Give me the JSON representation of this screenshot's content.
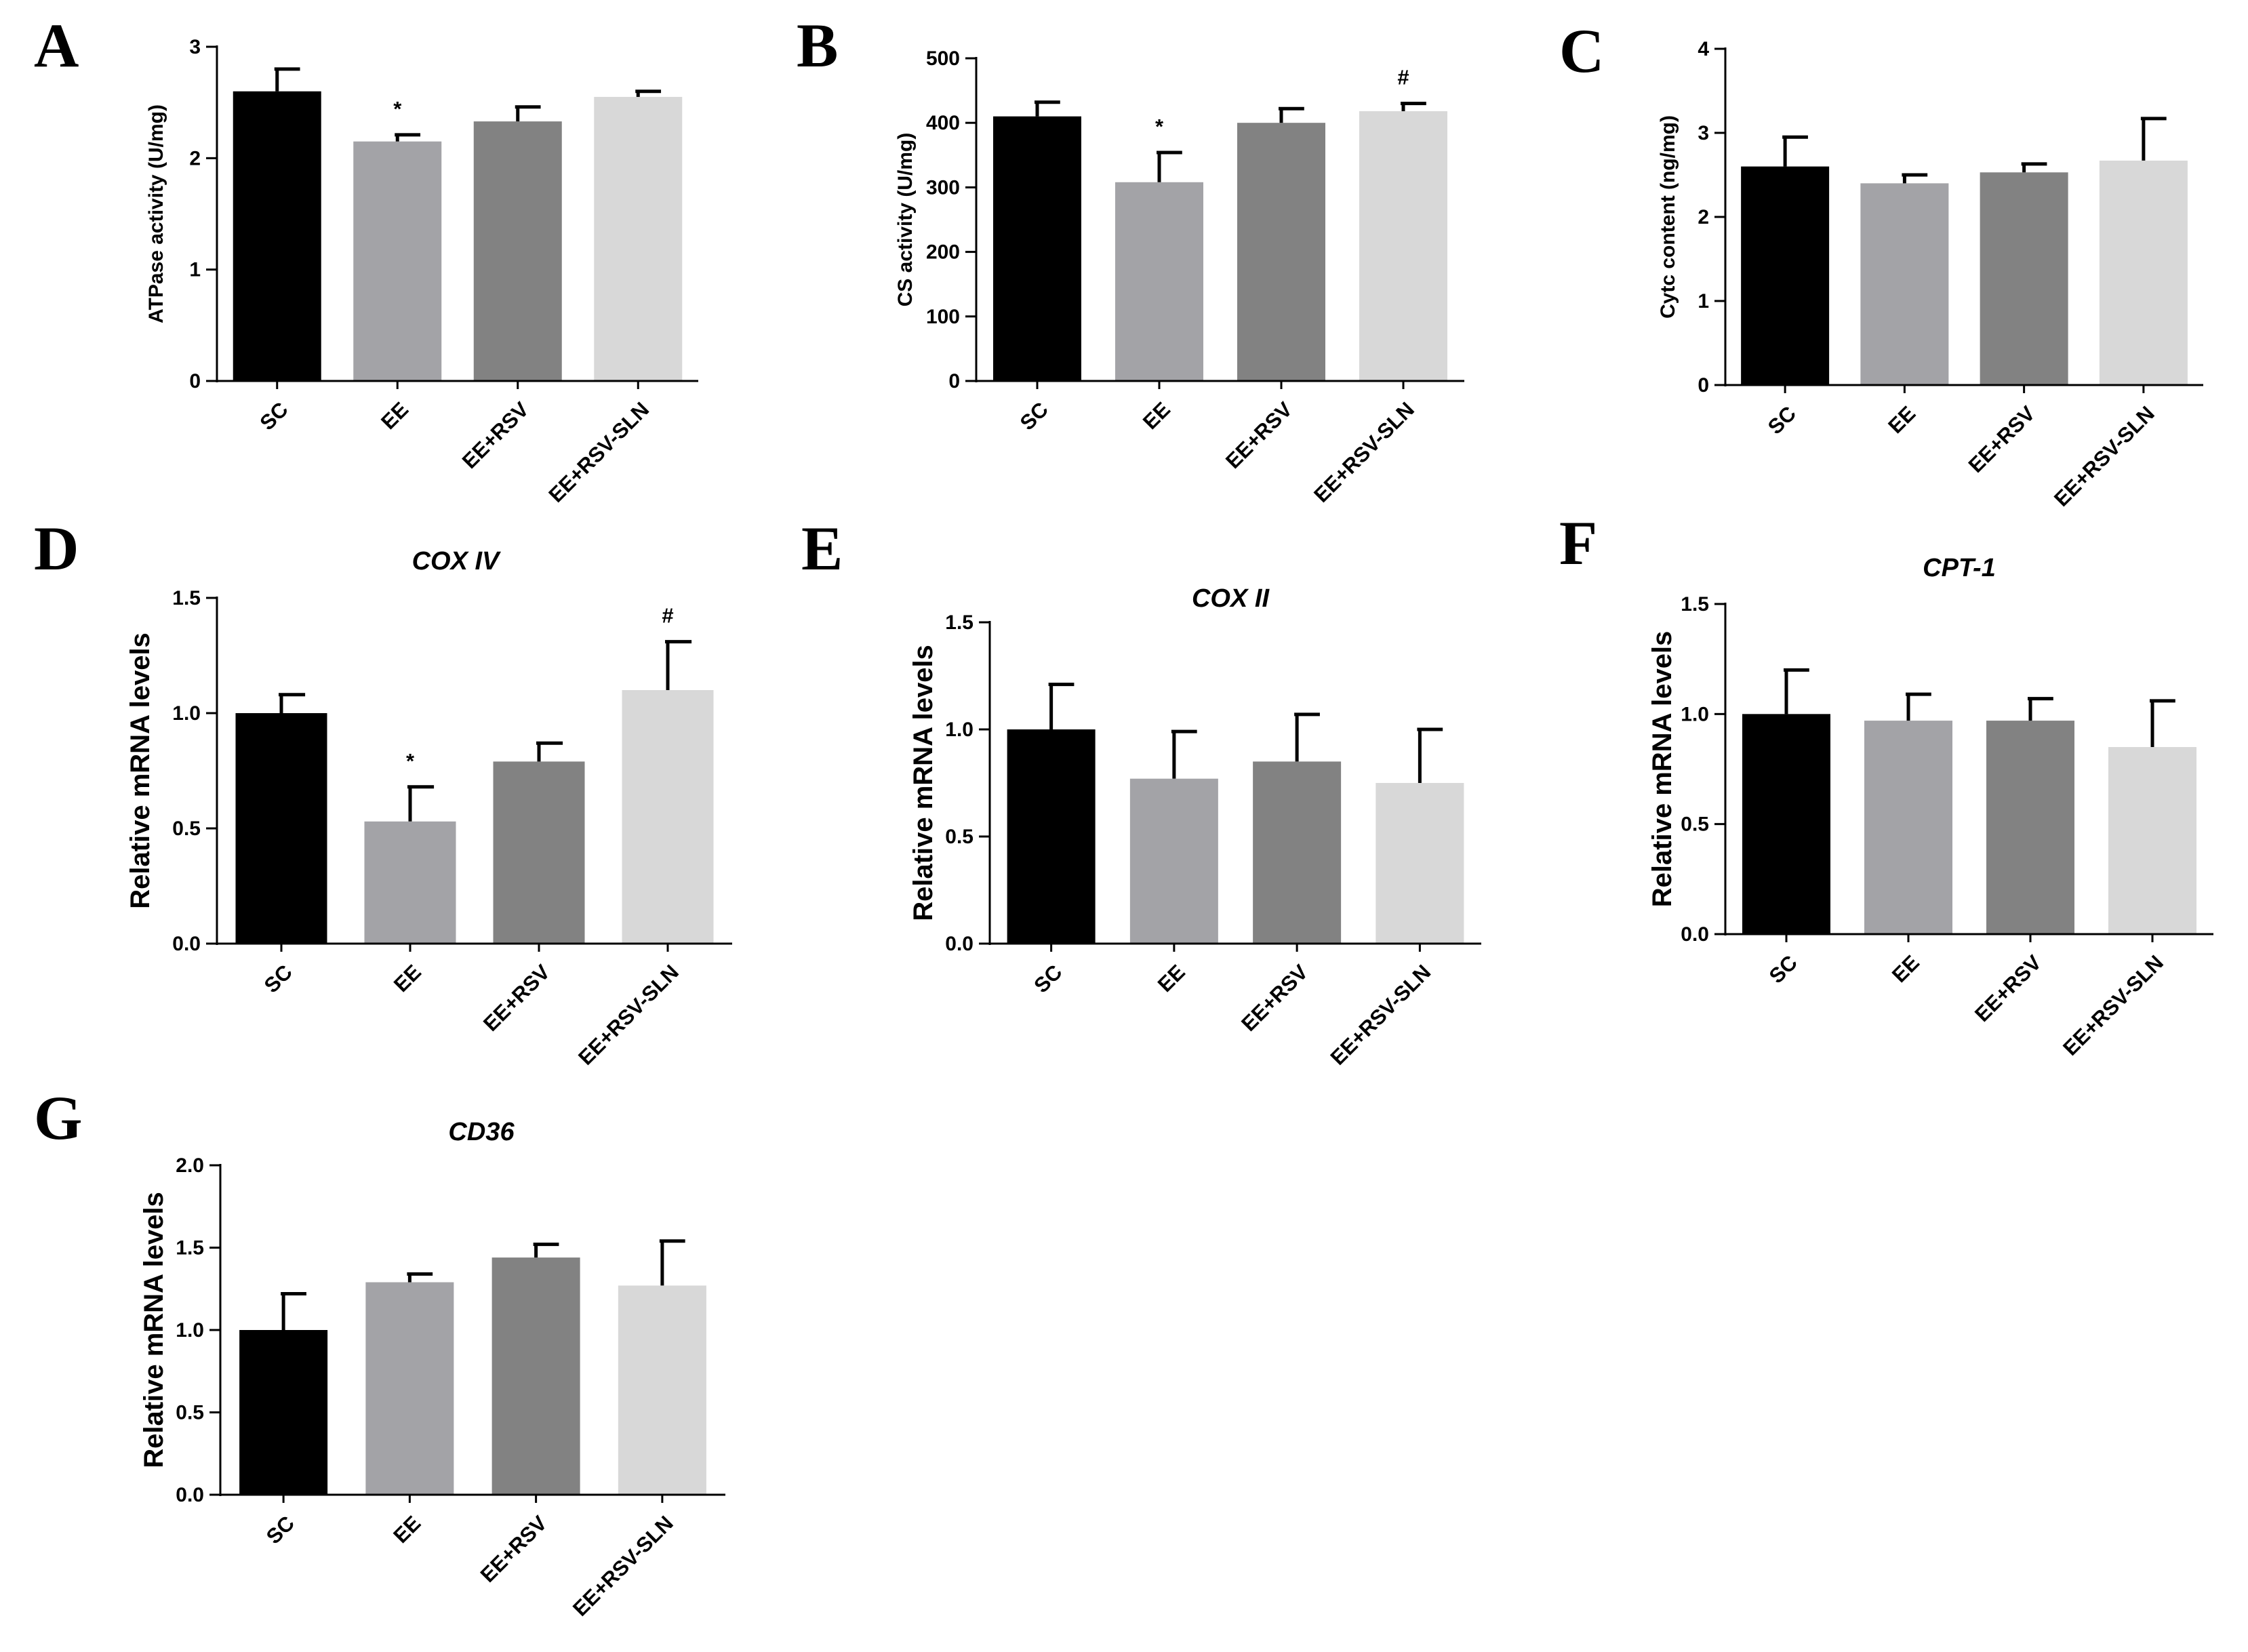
{
  "figure": {
    "colors": {
      "SC": "#000000",
      "EE": "#a3a3a7",
      "EE+RSV": "#828282",
      "EE+RSV-SLN": "#d8d8d8"
    }
  },
  "chart_data": [
    {
      "panel": "A",
      "type": "bar",
      "title": "",
      "xlabel": "",
      "ylabel": "ATPase activity (U/mg)",
      "ylim": [
        0,
        3
      ],
      "yticks": [
        "0",
        "1",
        "2",
        "3"
      ],
      "categories": [
        "SC",
        "EE",
        "EE+RSV",
        "EE+RSV-SLN"
      ],
      "values": [
        2.6,
        2.15,
        2.33,
        2.55
      ],
      "errors": [
        0.2,
        0.06,
        0.13,
        0.05
      ],
      "annotations": [
        "",
        "*",
        "",
        ""
      ]
    },
    {
      "panel": "B",
      "type": "bar",
      "title": "",
      "xlabel": "",
      "ylabel": "CS activity (U/mg)",
      "ylim": [
        0,
        500
      ],
      "yticks": [
        "0",
        "100",
        "200",
        "300",
        "400",
        "500"
      ],
      "categories": [
        "SC",
        "EE",
        "EE+RSV",
        "EE+RSV-SLN"
      ],
      "values": [
        410,
        308,
        400,
        418
      ],
      "errors": [
        22,
        46,
        22,
        12
      ],
      "annotations": [
        "",
        "*",
        "",
        "#"
      ]
    },
    {
      "panel": "C",
      "type": "bar",
      "title": "",
      "xlabel": "",
      "ylabel": "Cytc content (ng/mg)",
      "ylim": [
        0,
        4
      ],
      "yticks": [
        "0",
        "1",
        "2",
        "3",
        "4"
      ],
      "categories": [
        "SC",
        "EE",
        "EE+RSV",
        "EE+RSV-SLN"
      ],
      "values": [
        2.6,
        2.4,
        2.53,
        2.67
      ],
      "errors": [
        0.35,
        0.1,
        0.1,
        0.5
      ],
      "annotations": [
        "",
        "",
        "",
        ""
      ]
    },
    {
      "panel": "D",
      "type": "bar",
      "title": "COX IV",
      "xlabel": "",
      "ylabel": "Relative mRNA levels",
      "ylim": [
        0,
        1.5
      ],
      "yticks": [
        "0.0",
        "0.5",
        "1.0",
        "1.5"
      ],
      "categories": [
        "SC",
        "EE",
        "EE+RSV",
        "EE+RSV-SLN"
      ],
      "values": [
        1.0,
        0.53,
        0.79,
        1.1
      ],
      "errors": [
        0.08,
        0.15,
        0.08,
        0.21
      ],
      "annotations": [
        "",
        "*",
        "",
        "#"
      ]
    },
    {
      "panel": "E",
      "type": "bar",
      "title": "COX II",
      "xlabel": "",
      "ylabel": "Relative mRNA levels",
      "ylim": [
        0,
        1.5
      ],
      "yticks": [
        "0.0",
        "0.5",
        "1.0",
        "1.5"
      ],
      "categories": [
        "SC",
        "EE",
        "EE+RSV",
        "EE+RSV-SLN"
      ],
      "values": [
        1.0,
        0.77,
        0.85,
        0.75
      ],
      "errors": [
        0.21,
        0.22,
        0.22,
        0.25
      ],
      "annotations": [
        "",
        "",
        "",
        ""
      ]
    },
    {
      "panel": "F",
      "type": "bar",
      "title": "CPT-1",
      "xlabel": "",
      "ylabel": "Relative mRNA levels",
      "ylim": [
        0,
        1.5
      ],
      "yticks": [
        "0.0",
        "0.5",
        "1.0",
        "1.5"
      ],
      "categories": [
        "SC",
        "EE",
        "EE+RSV",
        "EE+RSV-SLN"
      ],
      "values": [
        1.0,
        0.97,
        0.97,
        0.85
      ],
      "errors": [
        0.2,
        0.12,
        0.1,
        0.21
      ],
      "annotations": [
        "",
        "",
        "",
        ""
      ]
    },
    {
      "panel": "G",
      "type": "bar",
      "title": "CD36",
      "xlabel": "",
      "ylabel": "Relative mRNA levels",
      "ylim": [
        0,
        2.0
      ],
      "yticks": [
        "0.0",
        "0.5",
        "1.0",
        "1.5",
        "2.0"
      ],
      "categories": [
        "SC",
        "EE",
        "EE+RSV",
        "EE+RSV-SLN"
      ],
      "values": [
        1.0,
        1.29,
        1.44,
        1.27
      ],
      "errors": [
        0.22,
        0.05,
        0.08,
        0.27
      ],
      "annotations": [
        "",
        "",
        "",
        ""
      ]
    }
  ]
}
